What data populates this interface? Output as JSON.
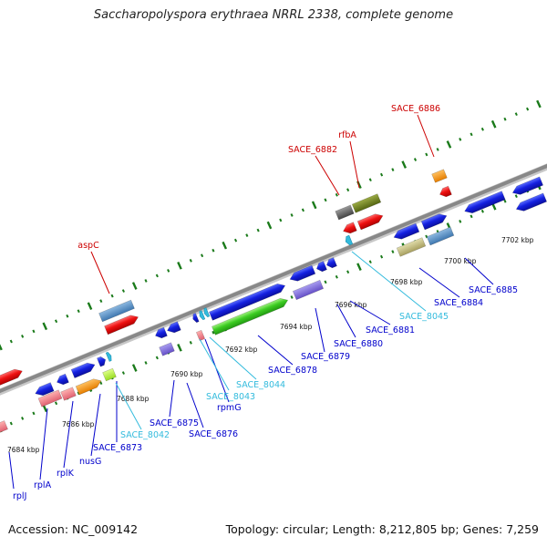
{
  "title": "Saccharopolyspora erythraea NRRL 2338, complete genome",
  "footer": {
    "accession": "Accession: NC_009142",
    "summary": "Topology: circular; Length: 8,212,805 bp; Genes: 7,259"
  },
  "colors": {
    "protein_gene": "#0000cc",
    "rna_gene": "#33bbdd",
    "named_gene": "#cc0000",
    "backbone": "#888888",
    "tick": "#1a7a1a"
  },
  "scale_labels": [
    "7684 kbp",
    "7686 kbp",
    "7688 kbp",
    "7690 kbp",
    "7692 kbp",
    "7694 kbp",
    "7696 kbp",
    "7698 kbp",
    "7700 kbp",
    "7702 kbp"
  ],
  "top_labels": [
    "aspC",
    "SACE_6882",
    "rfbA",
    "SACE_6886"
  ],
  "bottom_labels": [
    "rplJ",
    "rplA",
    "rplK",
    "nusG",
    "SACE_6873",
    "SACE_8042",
    "SACE_6875",
    "SACE_6876",
    "rpmG",
    "SACE_8043",
    "SACE_8044",
    "SACE_6878",
    "SACE_6879",
    "SACE_6880",
    "SACE_6881",
    "SACE_8045",
    "SACE_6884",
    "SACE_6885"
  ]
}
